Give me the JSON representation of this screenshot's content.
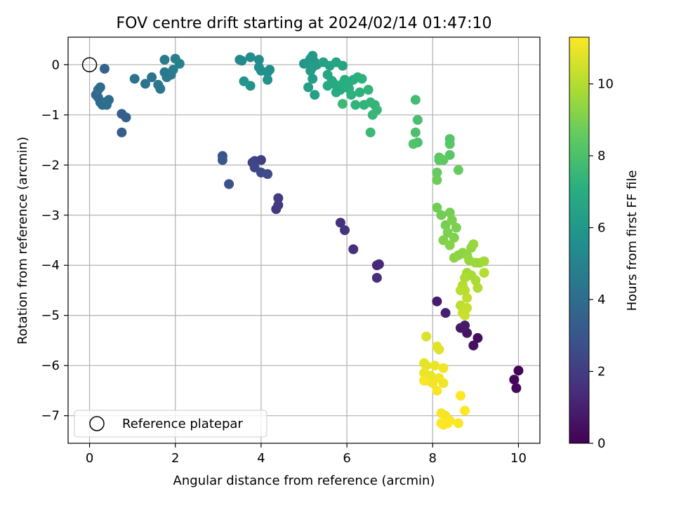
{
  "chart_data": {
    "type": "scatter",
    "title": "FOV centre drift starting at 2024/02/14 01:47:10",
    "xlabel": "Angular distance from reference (arcmin)",
    "ylabel": "Rotation from reference (arcmin)",
    "xlim": [
      -0.5,
      10.5
    ],
    "ylim": [
      -7.55,
      0.55
    ],
    "xticks": [
      0,
      2,
      4,
      6,
      8,
      10
    ],
    "yticks": [
      0,
      -1,
      -2,
      -3,
      -4,
      -5,
      -6,
      -7
    ],
    "grid": true,
    "legend": {
      "label": "Reference platepar",
      "location": "lower-left"
    },
    "reference_point": {
      "x": 0,
      "y": 0
    },
    "colorbar": {
      "label": "Hours from first FF file",
      "min": 0,
      "max": 11.3,
      "ticks": [
        0,
        2,
        4,
        6,
        8,
        10
      ],
      "colormap": "viridis"
    },
    "series": [
      {
        "points": [
          [
            10.0,
            -6.1,
            0.1
          ],
          [
            9.9,
            -6.28,
            0.2
          ],
          [
            9.95,
            -6.45,
            0.3
          ],
          [
            9.05,
            -5.45,
            0.4
          ],
          [
            8.95,
            -5.6,
            0.5
          ],
          [
            8.8,
            -5.35,
            0.6
          ],
          [
            8.65,
            -5.25,
            0.7
          ],
          [
            8.75,
            -5.2,
            0.8
          ],
          [
            8.1,
            -4.72,
            0.9
          ],
          [
            8.3,
            -4.95,
            1.0
          ],
          [
            6.7,
            -4.0,
            1.2
          ],
          [
            6.75,
            -3.98,
            1.3
          ],
          [
            6.7,
            -4.25,
            1.4
          ],
          [
            6.15,
            -3.68,
            1.5
          ],
          [
            5.85,
            -3.15,
            1.6
          ],
          [
            5.95,
            -3.3,
            1.7
          ],
          [
            4.35,
            -2.88,
            1.8
          ],
          [
            4.4,
            -2.8,
            1.9
          ],
          [
            4.4,
            -2.66,
            2.0
          ],
          [
            4.0,
            -1.9,
            2.1
          ],
          [
            3.85,
            -1.92,
            2.2
          ],
          [
            3.8,
            -1.95,
            2.3
          ],
          [
            3.85,
            -2.05,
            2.4
          ],
          [
            4.0,
            -2.15,
            2.5
          ],
          [
            4.15,
            -2.18,
            2.6
          ],
          [
            3.25,
            -2.38,
            2.8
          ],
          [
            3.1,
            -1.82,
            3.0
          ],
          [
            3.1,
            -1.9,
            3.1
          ],
          [
            0.75,
            -1.35,
            3.3
          ],
          [
            0.75,
            -0.98,
            3.4
          ],
          [
            0.85,
            -1.05,
            3.5
          ],
          [
            0.35,
            -0.08,
            3.6
          ],
          [
            0.15,
            -0.6,
            3.7
          ],
          [
            0.25,
            -0.75,
            3.8
          ],
          [
            0.3,
            -0.8,
            3.9
          ],
          [
            0.45,
            -0.7,
            4.0
          ],
          [
            0.2,
            -0.65,
            3.8
          ],
          [
            0.25,
            -0.45,
            3.9
          ],
          [
            0.2,
            -0.5,
            4.0
          ],
          [
            0.35,
            -0.75,
            4.1
          ],
          [
            0.4,
            -0.8,
            4.1
          ],
          [
            1.05,
            -0.28,
            4.2
          ],
          [
            1.3,
            -0.38,
            4.3
          ],
          [
            1.45,
            -0.25,
            4.3
          ],
          [
            1.6,
            -0.4,
            4.4
          ],
          [
            1.65,
            -0.48,
            4.4
          ],
          [
            1.75,
            -0.15,
            4.5
          ],
          [
            1.8,
            -0.25,
            4.6
          ],
          [
            1.9,
            -0.2,
            4.6
          ],
          [
            1.75,
            0.1,
            4.7
          ],
          [
            1.95,
            -0.1,
            4.8
          ],
          [
            2.0,
            0.12,
            4.8
          ],
          [
            2.1,
            0.02,
            4.9
          ],
          [
            3.5,
            0.1,
            5.2
          ],
          [
            3.55,
            0.08,
            5.3
          ],
          [
            3.75,
            0.15,
            5.4
          ],
          [
            3.95,
            0.1,
            5.4
          ],
          [
            3.95,
            -0.05,
            5.5
          ],
          [
            4.0,
            -0.12,
            5.6
          ],
          [
            4.15,
            -0.15,
            5.6
          ],
          [
            4.2,
            -0.1,
            5.6
          ],
          [
            4.15,
            -0.3,
            5.7
          ],
          [
            3.6,
            -0.33,
            5.8
          ],
          [
            3.75,
            -0.42,
            5.8
          ],
          [
            5.0,
            0.02,
            5.9
          ],
          [
            5.1,
            0.05,
            6.0
          ],
          [
            5.15,
            0.12,
            6.0
          ],
          [
            5.2,
            0.18,
            6.1
          ],
          [
            5.25,
            0.05,
            6.1
          ],
          [
            5.2,
            -0.05,
            6.2
          ],
          [
            5.3,
            0.0,
            6.2
          ],
          [
            5.15,
            -0.12,
            6.2
          ],
          [
            5.2,
            -0.28,
            6.3
          ],
          [
            5.1,
            -0.45,
            6.3
          ],
          [
            5.25,
            -0.6,
            6.4
          ],
          [
            5.45,
            0.05,
            6.5
          ],
          [
            5.6,
            -0.02,
            6.5
          ],
          [
            5.75,
            0.05,
            6.6
          ],
          [
            5.9,
            -0.02,
            6.6
          ],
          [
            5.55,
            -0.2,
            6.7
          ],
          [
            5.65,
            -0.32,
            6.7
          ],
          [
            5.7,
            -0.38,
            6.8
          ],
          [
            5.55,
            -0.42,
            6.8
          ],
          [
            5.75,
            -0.55,
            6.9
          ],
          [
            5.85,
            -0.5,
            6.9
          ],
          [
            5.9,
            -0.38,
            7.0
          ],
          [
            5.95,
            -0.3,
            7.0
          ],
          [
            6.05,
            -0.35,
            7.0
          ],
          [
            6.15,
            -0.3,
            7.1
          ],
          [
            6.25,
            -0.25,
            7.1
          ],
          [
            6.05,
            -0.48,
            7.1
          ],
          [
            6.1,
            -0.6,
            7.2
          ],
          [
            6.3,
            -0.55,
            7.2
          ],
          [
            6.35,
            -0.28,
            7.2
          ],
          [
            6.2,
            -0.8,
            7.3
          ],
          [
            6.4,
            -0.8,
            7.3
          ],
          [
            6.5,
            -0.5,
            7.3
          ],
          [
            6.55,
            -0.75,
            7.4
          ],
          [
            6.65,
            -0.8,
            7.4
          ],
          [
            6.7,
            -0.9,
            7.5
          ],
          [
            6.6,
            -1.0,
            7.5
          ],
          [
            6.55,
            -1.35,
            7.6
          ],
          [
            5.9,
            -0.78,
            7.6
          ],
          [
            7.6,
            -0.7,
            7.8
          ],
          [
            7.65,
            -1.1,
            7.9
          ],
          [
            7.6,
            -1.35,
            8.0
          ],
          [
            7.65,
            -1.55,
            8.0
          ],
          [
            7.55,
            -1.58,
            8.1
          ],
          [
            8.4,
            -1.48,
            8.2
          ],
          [
            8.4,
            -1.58,
            8.3
          ],
          [
            8.4,
            -1.8,
            8.3
          ],
          [
            8.15,
            -1.85,
            8.4
          ],
          [
            8.15,
            -1.9,
            8.4
          ],
          [
            8.25,
            -1.9,
            8.5
          ],
          [
            8.6,
            -2.1,
            8.6
          ],
          [
            8.1,
            -2.15,
            8.6
          ],
          [
            8.1,
            -2.3,
            8.7
          ],
          [
            8.1,
            -2.85,
            8.8
          ],
          [
            8.2,
            -3.0,
            8.8
          ],
          [
            8.4,
            -2.95,
            8.9
          ],
          [
            8.3,
            -3.2,
            8.9
          ],
          [
            8.45,
            -3.1,
            9.0
          ],
          [
            8.55,
            -3.25,
            9.0
          ],
          [
            8.35,
            -3.35,
            9.0
          ],
          [
            8.5,
            -3.45,
            9.1
          ],
          [
            8.25,
            -3.5,
            9.1
          ],
          [
            8.4,
            -3.6,
            9.2
          ],
          [
            8.6,
            -3.8,
            9.2
          ],
          [
            8.5,
            -3.85,
            9.3
          ],
          [
            8.7,
            -3.75,
            9.3
          ],
          [
            8.8,
            -3.8,
            9.4
          ],
          [
            8.9,
            -3.65,
            9.4
          ],
          [
            8.95,
            -3.58,
            9.5
          ],
          [
            8.85,
            -3.9,
            9.5
          ],
          [
            9.0,
            -3.95,
            9.6
          ],
          [
            9.1,
            -3.95,
            9.6
          ],
          [
            9.2,
            -3.92,
            9.7
          ],
          [
            8.8,
            -4.15,
            9.7
          ],
          [
            8.9,
            -4.2,
            9.8
          ],
          [
            9.0,
            -4.3,
            9.8
          ],
          [
            8.75,
            -4.25,
            9.9
          ],
          [
            9.05,
            -4.45,
            9.9
          ],
          [
            9.2,
            -4.15,
            10.0
          ],
          [
            8.7,
            -4.4,
            10.0
          ],
          [
            8.75,
            -4.5,
            10.1
          ],
          [
            8.65,
            -4.5,
            10.1
          ],
          [
            8.8,
            -4.65,
            10.2
          ],
          [
            8.65,
            -4.8,
            10.2
          ],
          [
            8.8,
            -4.85,
            10.3
          ],
          [
            8.7,
            -4.95,
            10.3
          ],
          [
            8.75,
            -5.0,
            10.4
          ],
          [
            7.85,
            -5.42,
            10.7
          ],
          [
            8.1,
            -5.62,
            10.8
          ],
          [
            8.15,
            -5.68,
            10.8
          ],
          [
            7.8,
            -5.95,
            10.9
          ],
          [
            7.85,
            -6.0,
            10.9
          ],
          [
            7.8,
            -6.15,
            11.0
          ],
          [
            7.85,
            -6.3,
            11.0
          ],
          [
            7.95,
            -6.2,
            11.0
          ],
          [
            8.05,
            -6.0,
            11.0
          ],
          [
            8.25,
            -6.05,
            11.1
          ],
          [
            8.0,
            -6.35,
            11.1
          ],
          [
            8.15,
            -6.25,
            11.1
          ],
          [
            8.25,
            -6.35,
            11.1
          ],
          [
            8.1,
            -6.5,
            11.2
          ],
          [
            8.2,
            -6.95,
            11.2
          ],
          [
            8.3,
            -7.0,
            11.2
          ],
          [
            8.4,
            -7.1,
            11.2
          ],
          [
            8.2,
            -7.15,
            11.3
          ],
          [
            8.6,
            -7.15,
            11.3
          ],
          [
            8.65,
            -6.6,
            11.3
          ],
          [
            8.75,
            -6.9,
            11.3
          ],
          [
            7.8,
            -6.3,
            11.2
          ],
          [
            8.35,
            -7.15,
            11.3
          ],
          [
            8.25,
            -7.18,
            11.3
          ]
        ]
      }
    ]
  }
}
